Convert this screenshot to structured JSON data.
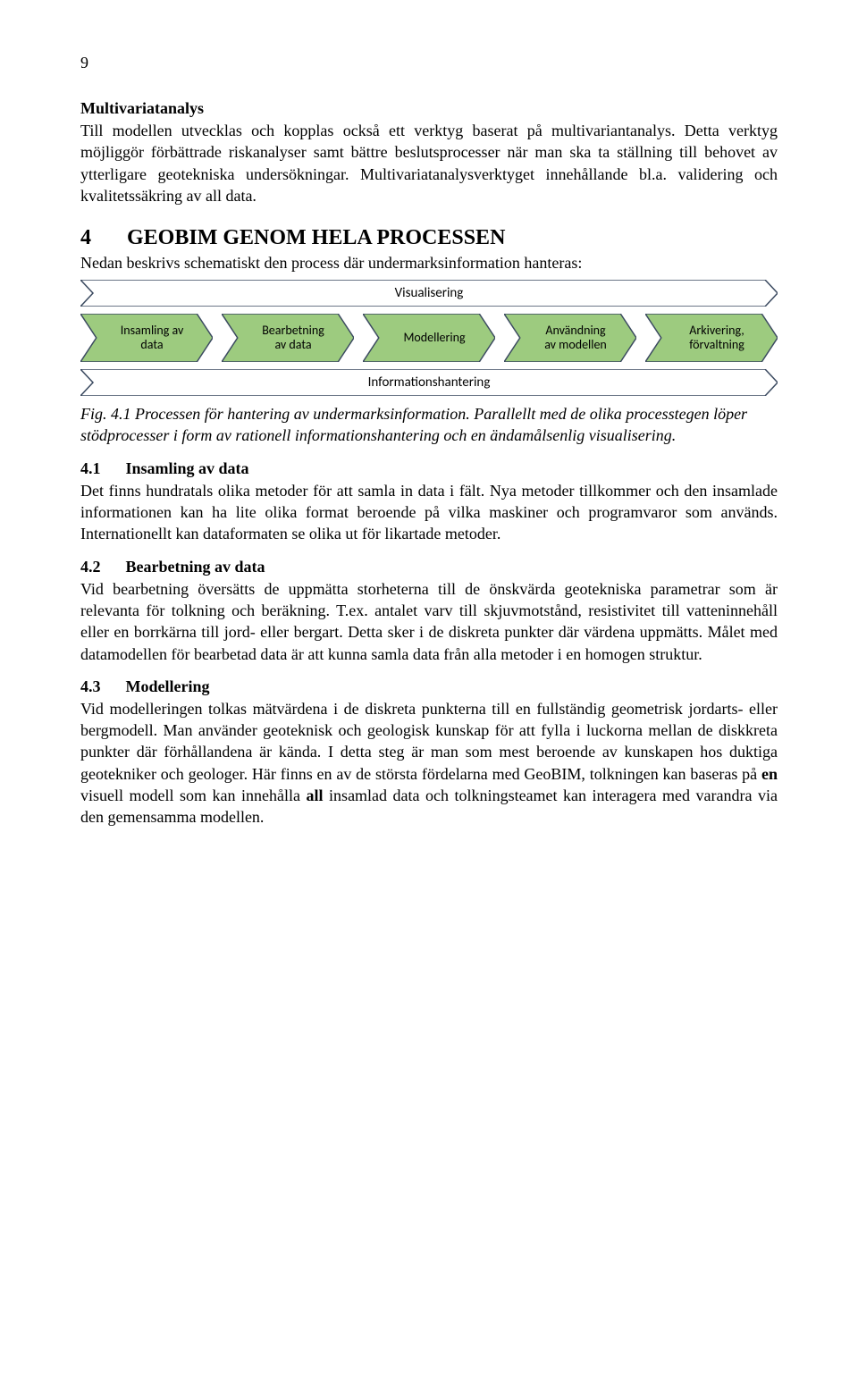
{
  "page_number": "9",
  "para1": {
    "heading": "Multivariatanalys",
    "text": "Till modellen utvecklas och kopplas också ett verktyg baserat på multivariantanalys. Detta verktyg möjliggör förbättrade riskanalyser samt bättre beslutsprocesser när man ska ta ställning till behovet av ytterligare geotekniska undersökningar. Multivariatanalysverktyget innehållande bl.a. validering och kvalitetssäkring av all data."
  },
  "h1": {
    "number": "4",
    "title": "GEOBIM GENOM HELA PROCESSEN"
  },
  "sub_intro": "Nedan beskrivs schematiskt den process där undermarksinformation hanteras:",
  "diagram": {
    "type": "flowchart",
    "top_bar": {
      "label": "Visualisering",
      "fill": "#ffffff",
      "stroke": "#3b4a60"
    },
    "bottom_bar": {
      "label": "Informationshantering",
      "fill": "#ffffff",
      "stroke": "#3b4a60"
    },
    "steps": [
      {
        "label": "Insamling av\ndata"
      },
      {
        "label": "Bearbetning\nav data"
      },
      {
        "label": "Modellering"
      },
      {
        "label": "Användning\nav modellen"
      },
      {
        "label": "Arkivering,\nförvaltning"
      }
    ],
    "step_fill": "#9dcb7f",
    "step_stroke": "#3b4a60",
    "label_fontsize": 14,
    "label_color": "#000000"
  },
  "caption": "Fig. 4.1 Processen för hantering av undermarksinformation. Parallellt med de olika processtegen löper stödprocesser i form av rationell informationshantering och en ändamålsenlig visualisering.",
  "s41": {
    "number": "4.1",
    "title": "Insamling av data",
    "text": "Det finns hundratals olika metoder för att samla in data i fält. Nya metoder tillkommer och den insamlade informationen kan ha lite olika format beroende på vilka maskiner och programvaror som används. Internationellt kan dataformaten se olika ut för likartade metoder."
  },
  "s42": {
    "number": "4.2",
    "title": "Bearbetning av data",
    "text": "Vid bearbetning översätts de uppmätta storheterna till de önskvärda geotekniska parametrar som är relevanta för tolkning och beräkning. T.ex. antalet varv till skjuvmotstånd, resistivitet till vatteninnehåll eller en borrkärna till jord- eller bergart. Detta sker i de diskreta punkter där värdena uppmätts. Målet med datamodellen för bearbetad data är att kunna samla data från alla metoder i en homogen struktur."
  },
  "s43": {
    "number": "4.3",
    "title": "Modellering",
    "text_parts": [
      "Vid modelleringen tolkas mätvärdena i de diskreta punkterna till en fullständig geometrisk jordarts- eller bergmodell. Man använder geoteknisk och geologisk kunskap för att fylla i luckorna mellan de diskkreta punkter där förhållandena är kända. I detta steg är man som mest beroende av kunskapen hos duktiga geotekniker och geologer. Här finns en av de största fördelarna med GeoBIM, tolkningen kan baseras på ",
      "en",
      " visuell modell som kan innehålla ",
      "all",
      " insamlad data och tolkningsteamet kan interagera med varandra via den gemensamma modellen."
    ]
  }
}
